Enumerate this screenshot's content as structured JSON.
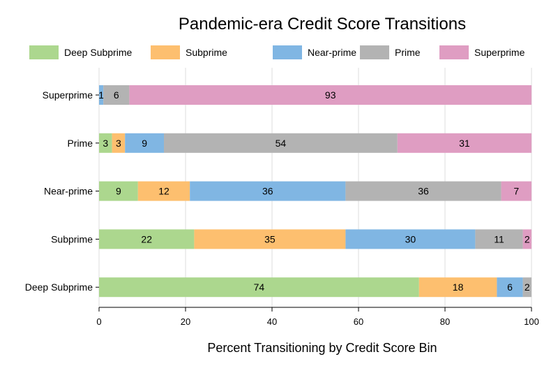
{
  "chart_data": {
    "type": "bar",
    "orientation": "horizontal",
    "stacked": true,
    "title": "Pandemic-era Credit Score Transitions",
    "xlabel": "Percent Transitioning by Credit Score Bin",
    "ylabel": "",
    "xlim": [
      0,
      100
    ],
    "xticks": [
      0,
      20,
      40,
      60,
      80,
      100
    ],
    "grid": "vertical",
    "legend_position": "top",
    "categories": [
      "Superprime",
      "Prime",
      "Near-prime",
      "Subprime",
      "Deep Subprime"
    ],
    "series": [
      {
        "name": "Deep Subprime",
        "color": "#acd78e",
        "values": [
          0,
          3,
          9,
          22,
          74
        ]
      },
      {
        "name": "Subprime",
        "color": "#fdbf6f",
        "values": [
          0,
          3,
          12,
          35,
          18
        ]
      },
      {
        "name": "Near-prime",
        "color": "#80b6e3",
        "values": [
          1,
          9,
          36,
          30,
          6
        ]
      },
      {
        "name": "Prime",
        "color": "#b3b3b3",
        "values": [
          6,
          54,
          36,
          11,
          2
        ]
      },
      {
        "name": "Superprime",
        "color": "#df9dc2",
        "values": [
          93,
          31,
          7,
          2,
          0
        ]
      }
    ]
  }
}
